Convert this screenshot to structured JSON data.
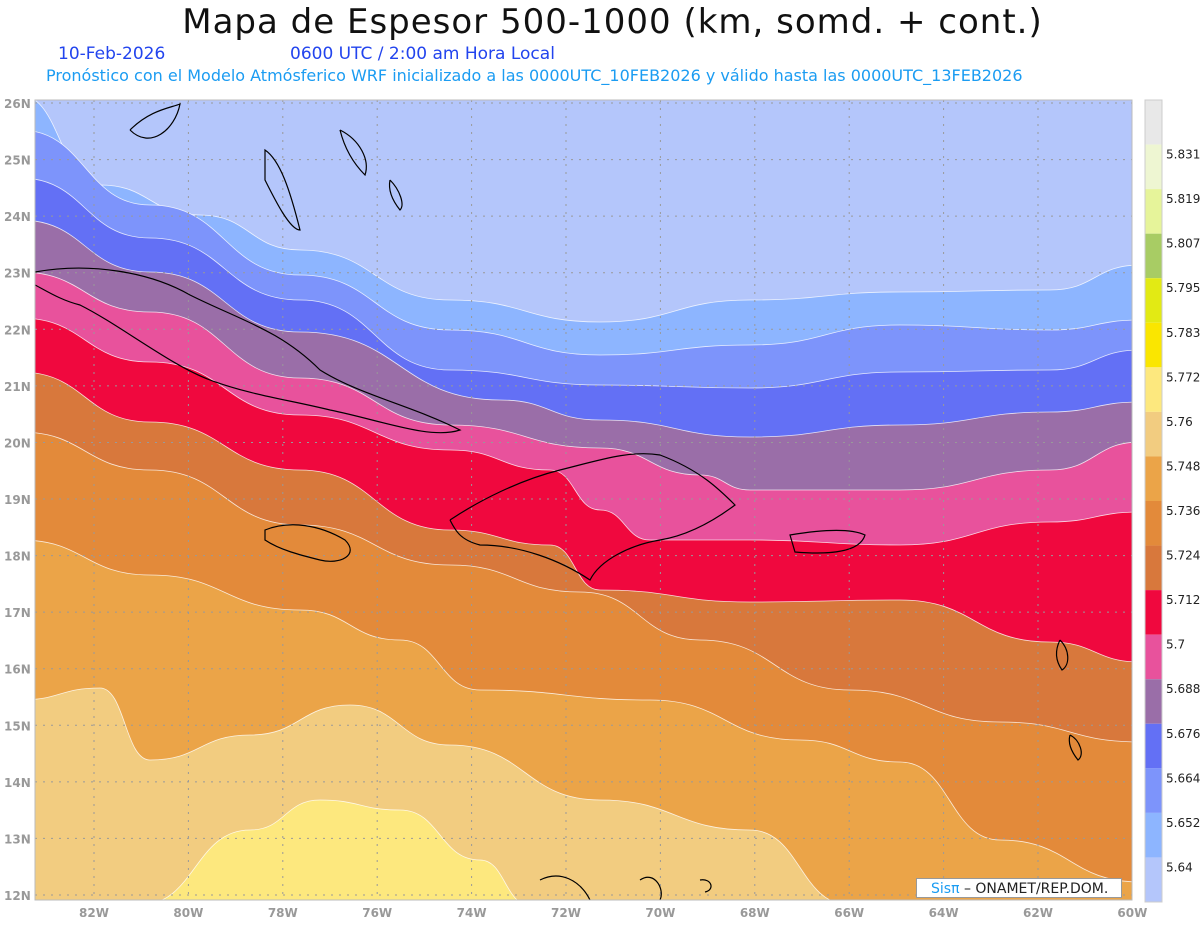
{
  "header": {
    "title": "Mapa de Espesor 500-1000 (km, somd. + cont.)",
    "date": "10-Feb-2026",
    "time": "0600 UTC / 2:00 am Hora Local",
    "subtitle": "Pronóstico con el Modelo Atmósferico WRF inicializado a las 0000UTC_10FEB2026 y válido hasta las  0000UTC_13FEB2026"
  },
  "map": {
    "lat_labels": [
      "12N",
      "13N",
      "14N",
      "15N",
      "16N",
      "17N",
      "18N",
      "19N",
      "20N",
      "21N",
      "22N",
      "23N",
      "24N",
      "25N",
      "26N"
    ],
    "lon_labels": [
      "82W",
      "80W",
      "78W",
      "76W",
      "74W",
      "72W",
      "70W",
      "68W",
      "66W",
      "64W",
      "62W",
      "60W"
    ]
  },
  "colorbar": {
    "levels": [
      "5.64",
      "5.652",
      "5.664",
      "5.676",
      "5.688",
      "5.7",
      "5.712",
      "5.724",
      "5.736",
      "5.748",
      "5.76",
      "5.772",
      "5.783",
      "5.795",
      "5.807",
      "5.819",
      "5.831"
    ],
    "colors": [
      "#b4c6fb",
      "#8db5ff",
      "#7d94fb",
      "#6370f5",
      "#9a6ea8",
      "#e8529c",
      "#f0083e",
      "#d8783c",
      "#e38a3a",
      "#eba448",
      "#f2cc80",
      "#fde87e",
      "#fae600",
      "#e2ea14",
      "#a8cc64",
      "#e6f49a",
      "#eef6d2",
      "#e8e8e8"
    ]
  },
  "logo": {
    "brand": "Sisπ",
    "text": " – ONAMET/REP.DOM."
  }
}
